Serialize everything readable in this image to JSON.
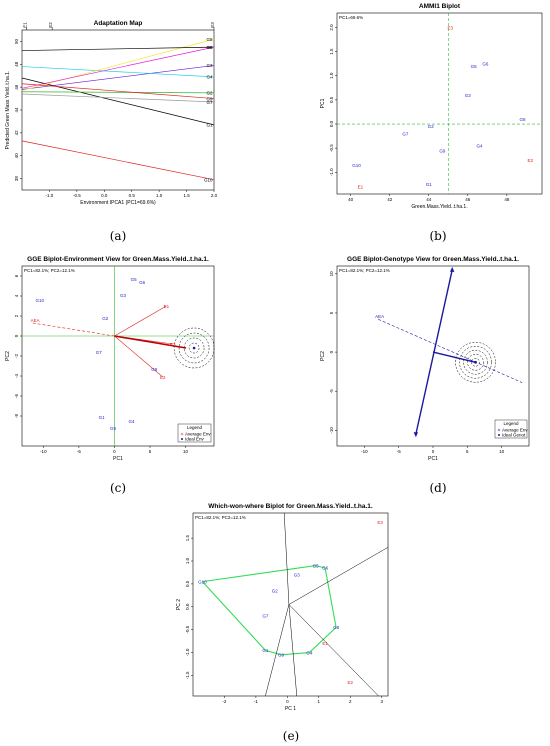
{
  "captions": [
    "(a)",
    "(b)",
    "(c)",
    "(d)",
    "(e)"
  ],
  "chart_data": [
    {
      "id": "a",
      "type": "line",
      "title": "Adaptation Map",
      "xlabel": "Environment IPCA1 (PC1=69.6%)",
      "ylabel": "Predicted Green Mass Yield..t.ha.1.",
      "xlim": [
        -1.5,
        2.0
      ],
      "ylim": [
        37,
        51
      ],
      "xticks": [
        "-1.0",
        "-0.5",
        "0.0",
        "0.5",
        "1.0",
        "1.5",
        "2.0"
      ],
      "xtick_values": [
        -1.0,
        -0.5,
        0.0,
        0.5,
        1.0,
        1.5,
        2.0
      ],
      "yticks": [
        "38",
        "40",
        "42",
        "44",
        "46",
        "48",
        "50"
      ],
      "ytick_values": [
        38,
        40,
        42,
        44,
        46,
        48,
        50
      ],
      "top_labels": [
        {
          "label": "E1",
          "x": -1.42
        },
        {
          "label": "E2",
          "x": -0.95
        },
        {
          "label": "E3",
          "x": 2.0
        }
      ],
      "series": [
        {
          "name": "G1",
          "color": "#000000",
          "x": [
            -1.5,
            2.0
          ],
          "y": [
            46.8,
            42.7
          ]
        },
        {
          "name": "G2",
          "color": "#2db82d",
          "x": [
            -1.5,
            2.0
          ],
          "y": [
            45.6,
            45.5
          ]
        },
        {
          "name": "G3",
          "color": "#6a1bd6",
          "x": [
            -1.5,
            2.0
          ],
          "y": [
            45.8,
            47.9
          ]
        },
        {
          "name": "G4",
          "color": "#1fd1e6",
          "x": [
            -1.5,
            2.0
          ],
          "y": [
            47.8,
            46.9
          ]
        },
        {
          "name": "G5",
          "color": "#f5e61c",
          "x": [
            -1.5,
            2.0
          ],
          "y": [
            45.7,
            50.2
          ]
        },
        {
          "name": "G6",
          "color": "#000000",
          "x": [
            -1.5,
            2.0
          ],
          "y": [
            49.2,
            49.5
          ]
        },
        {
          "name": "G7",
          "color": "#9a9a9a",
          "x": [
            -1.5,
            2.0
          ],
          "y": [
            45.4,
            44.7
          ]
        },
        {
          "name": "G8",
          "color": "#e81ce0",
          "x": [
            -1.5,
            2.0
          ],
          "y": [
            45.9,
            49.5
          ]
        },
        {
          "name": "G9",
          "color": "#e02020",
          "x": [
            -1.5,
            2.0
          ],
          "y": [
            46.3,
            45.0
          ]
        },
        {
          "name": "G10",
          "color": "#e02020",
          "x": [
            -1.5,
            2.0
          ],
          "y": [
            41.3,
            37.9
          ]
        }
      ]
    },
    {
      "id": "b",
      "type": "scatter",
      "title": "AMMI1 Biplot",
      "subtitle": "PC1=69.6%",
      "xlabel": "Green.Mass.Yield..t.ha.1.",
      "ylabel": "PC1",
      "xlim": [
        39.3,
        49.8
      ],
      "ylim": [
        -1.45,
        2.3
      ],
      "xticks": [
        "40",
        "42",
        "44",
        "46",
        "48"
      ],
      "xtick_values": [
        40,
        42,
        44,
        46,
        48
      ],
      "yticks": [
        "-1.0",
        "-0.5",
        "0.0",
        "0.5",
        "1.0",
        "1.5",
        "2.0"
      ],
      "ytick_values": [
        -1.0,
        -0.5,
        0.0,
        0.5,
        1.0,
        1.5,
        2.0
      ],
      "mean_x": 45.0,
      "points": [
        {
          "label": "E1",
          "x": 40.5,
          "y": -1.3,
          "color": "#e02020"
        },
        {
          "label": "E2",
          "x": 49.2,
          "y": -0.75,
          "color": "#e02020"
        },
        {
          "label": "E3",
          "x": 45.1,
          "y": 2.0,
          "color": "#e02020"
        },
        {
          "label": "G1",
          "x": 44.0,
          "y": -1.25,
          "color": "#2222cc"
        },
        {
          "label": "G2",
          "x": 44.1,
          "y": -0.05,
          "color": "#2222cc"
        },
        {
          "label": "G3",
          "x": 46.0,
          "y": 0.6,
          "color": "#2222cc"
        },
        {
          "label": "G4",
          "x": 46.6,
          "y": -0.45,
          "color": "#2222cc"
        },
        {
          "label": "G5",
          "x": 46.3,
          "y": 1.2,
          "color": "#2222cc"
        },
        {
          "label": "G6",
          "x": 46.9,
          "y": 1.25,
          "color": "#2222cc"
        },
        {
          "label": "G7",
          "x": 42.8,
          "y": -0.2,
          "color": "#2222cc"
        },
        {
          "label": "G8",
          "x": 48.8,
          "y": 0.1,
          "color": "#2222cc"
        },
        {
          "label": "G9",
          "x": 44.7,
          "y": -0.55,
          "color": "#2222cc"
        },
        {
          "label": "G10",
          "x": 40.3,
          "y": -0.85,
          "color": "#2222cc"
        }
      ]
    },
    {
      "id": "c",
      "type": "scatter",
      "title": "GGE Biplot-Environment View for Green.Mass.Yield..t.ha.1.",
      "subtitle": "PC1=82.1%; PC2=12.1%",
      "xlabel": "PC1",
      "ylabel": "PC2",
      "xlim": [
        -13,
        14
      ],
      "ylim": [
        -11,
        7
      ],
      "xticks": [
        "-10",
        "-5",
        "0",
        "5",
        "10"
      ],
      "xtick_values": [
        -10,
        -5,
        0,
        5,
        10
      ],
      "yticks": [
        "-8",
        "-6",
        "-4",
        "-2",
        "0",
        "2",
        "4",
        "6"
      ],
      "ytick_values": [
        -8,
        -6,
        -4,
        -2,
        0,
        2,
        4,
        6
      ],
      "ideal": {
        "x": 11.2,
        "y": -1.2
      },
      "aea_from": {
        "x": -11.5,
        "y": 1.3
      },
      "aea_label": "AEA",
      "points": [
        {
          "label": "E1",
          "x": 7.3,
          "y": 3.0,
          "color": "#e02020"
        },
        {
          "label": "E2",
          "x": 6.8,
          "y": -4.1,
          "color": "#e02020"
        },
        {
          "label": "E3",
          "x": 8.2,
          "y": -0.8,
          "color": "#e02020"
        },
        {
          "label": "G1",
          "x": -1.8,
          "y": -8.1,
          "color": "#2222cc"
        },
        {
          "label": "G2",
          "x": -1.3,
          "y": 1.8,
          "color": "#2222cc"
        },
        {
          "label": "G3",
          "x": 1.2,
          "y": 4.1,
          "color": "#2222cc"
        },
        {
          "label": "G4",
          "x": 2.4,
          "y": -8.5,
          "color": "#2222cc"
        },
        {
          "label": "G5",
          "x": 2.7,
          "y": 5.7,
          "color": "#2222cc"
        },
        {
          "label": "G6",
          "x": 3.9,
          "y": 5.4,
          "color": "#2222cc"
        },
        {
          "label": "G7",
          "x": -2.2,
          "y": -1.6,
          "color": "#2222cc"
        },
        {
          "label": "G8",
          "x": 5.6,
          "y": -3.3,
          "color": "#2222cc"
        },
        {
          "label": "G9",
          "x": -0.2,
          "y": -9.2,
          "color": "#2222cc"
        },
        {
          "label": "G10",
          "x": -10.5,
          "y": 3.6,
          "color": "#2222cc"
        }
      ],
      "legend": {
        "title": "Legend",
        "items": [
          "Average Env",
          "Ideal Env"
        ]
      }
    },
    {
      "id": "d",
      "type": "scatter",
      "title": "GGE Biplot-Genotype View for Green.Mass.Yield..t.ha.1.",
      "subtitle": "PC1=82.1%; PC2=12.1%",
      "xlabel": "PC1",
      "ylabel": "PC2",
      "xlim": [
        -14,
        14
      ],
      "ylim": [
        -12,
        11
      ],
      "xticks": [
        "-10",
        "-5",
        "0",
        "5",
        "10"
      ],
      "xtick_values": [
        -10,
        -5,
        0,
        5,
        10
      ],
      "yticks": [
        "-10",
        "-5",
        "0",
        "5",
        "10"
      ],
      "ytick_values": [
        -10,
        -5,
        0,
        5,
        10
      ],
      "ideal": {
        "x": 6.2,
        "y": -1.3
      },
      "aea_label": "AEA",
      "legend": {
        "title": "Legend",
        "items": [
          "Average Env",
          "Ideal Genot"
        ]
      }
    },
    {
      "id": "e",
      "type": "scatter",
      "title": "Which-won-where Biplot for Green.Mass.Yield..t.ha.1.",
      "subtitle": "PC1=82.1%; PC2=12.1%",
      "xlabel": "PC 1",
      "ylabel": "PC 2",
      "xlim": [
        -3.0,
        3.2
      ],
      "ylim": [
        -1.95,
        2.05
      ],
      "xticks": [
        "-2",
        "-1",
        "0",
        "1",
        "2",
        "3"
      ],
      "xtick_values": [
        -2,
        -1,
        0,
        1,
        2,
        3
      ],
      "yticks": [
        "-1.5",
        "-1.0",
        "-0.5",
        "0.0",
        "0.5",
        "1.0",
        "1.5"
      ],
      "ytick_values": [
        -1.5,
        -1.0,
        -0.5,
        0.0,
        0.5,
        1.0,
        1.5
      ],
      "hull": [
        "G10",
        "G5",
        "G6",
        "G8",
        "G4",
        "G9",
        "G1",
        "G10"
      ],
      "points": [
        {
          "label": "E1",
          "x": 1.2,
          "y": -0.8,
          "color": "#e02020"
        },
        {
          "label": "E2",
          "x": 2.0,
          "y": -1.65,
          "color": "#e02020"
        },
        {
          "label": "E3",
          "x": 2.95,
          "y": 1.85,
          "color": "#e02020"
        },
        {
          "label": "G1",
          "x": -0.7,
          "y": -0.95,
          "color": "#2222cc"
        },
        {
          "label": "G2",
          "x": -0.4,
          "y": 0.35,
          "color": "#2222cc"
        },
        {
          "label": "G3",
          "x": 0.3,
          "y": 0.7,
          "color": "#2222cc"
        },
        {
          "label": "G4",
          "x": 0.7,
          "y": -1.0,
          "color": "#2222cc"
        },
        {
          "label": "G5",
          "x": 0.9,
          "y": 0.9,
          "color": "#2222cc"
        },
        {
          "label": "G6",
          "x": 1.2,
          "y": 0.85,
          "color": "#2222cc"
        },
        {
          "label": "G7",
          "x": -0.7,
          "y": -0.2,
          "color": "#2222cc"
        },
        {
          "label": "G8",
          "x": 1.55,
          "y": -0.45,
          "color": "#2222cc"
        },
        {
          "label": "G9",
          "x": -0.2,
          "y": -1.05,
          "color": "#2222cc"
        },
        {
          "label": "G10",
          "x": -2.7,
          "y": 0.55,
          "color": "#2222cc"
        }
      ]
    }
  ]
}
